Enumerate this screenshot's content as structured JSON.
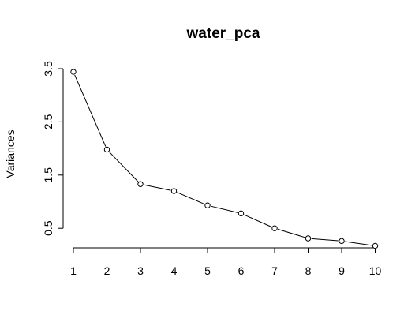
{
  "chart_data": {
    "type": "line",
    "title": "water_pca",
    "xlabel": "",
    "ylabel": "Variances",
    "x": [
      1,
      2,
      3,
      4,
      5,
      6,
      7,
      8,
      9,
      10
    ],
    "values": [
      3.44,
      1.98,
      1.33,
      1.2,
      0.93,
      0.78,
      0.5,
      0.31,
      0.26,
      0.17
    ],
    "xticks": [
      "1",
      "2",
      "3",
      "4",
      "5",
      "6",
      "7",
      "8",
      "9",
      "10"
    ],
    "yticks": [
      "0.5",
      "1.5",
      "2.5",
      "3.5"
    ],
    "ylim": [
      0.17,
      3.5
    ],
    "grid": false,
    "marker": "open-circle",
    "line_color": "#000000"
  }
}
